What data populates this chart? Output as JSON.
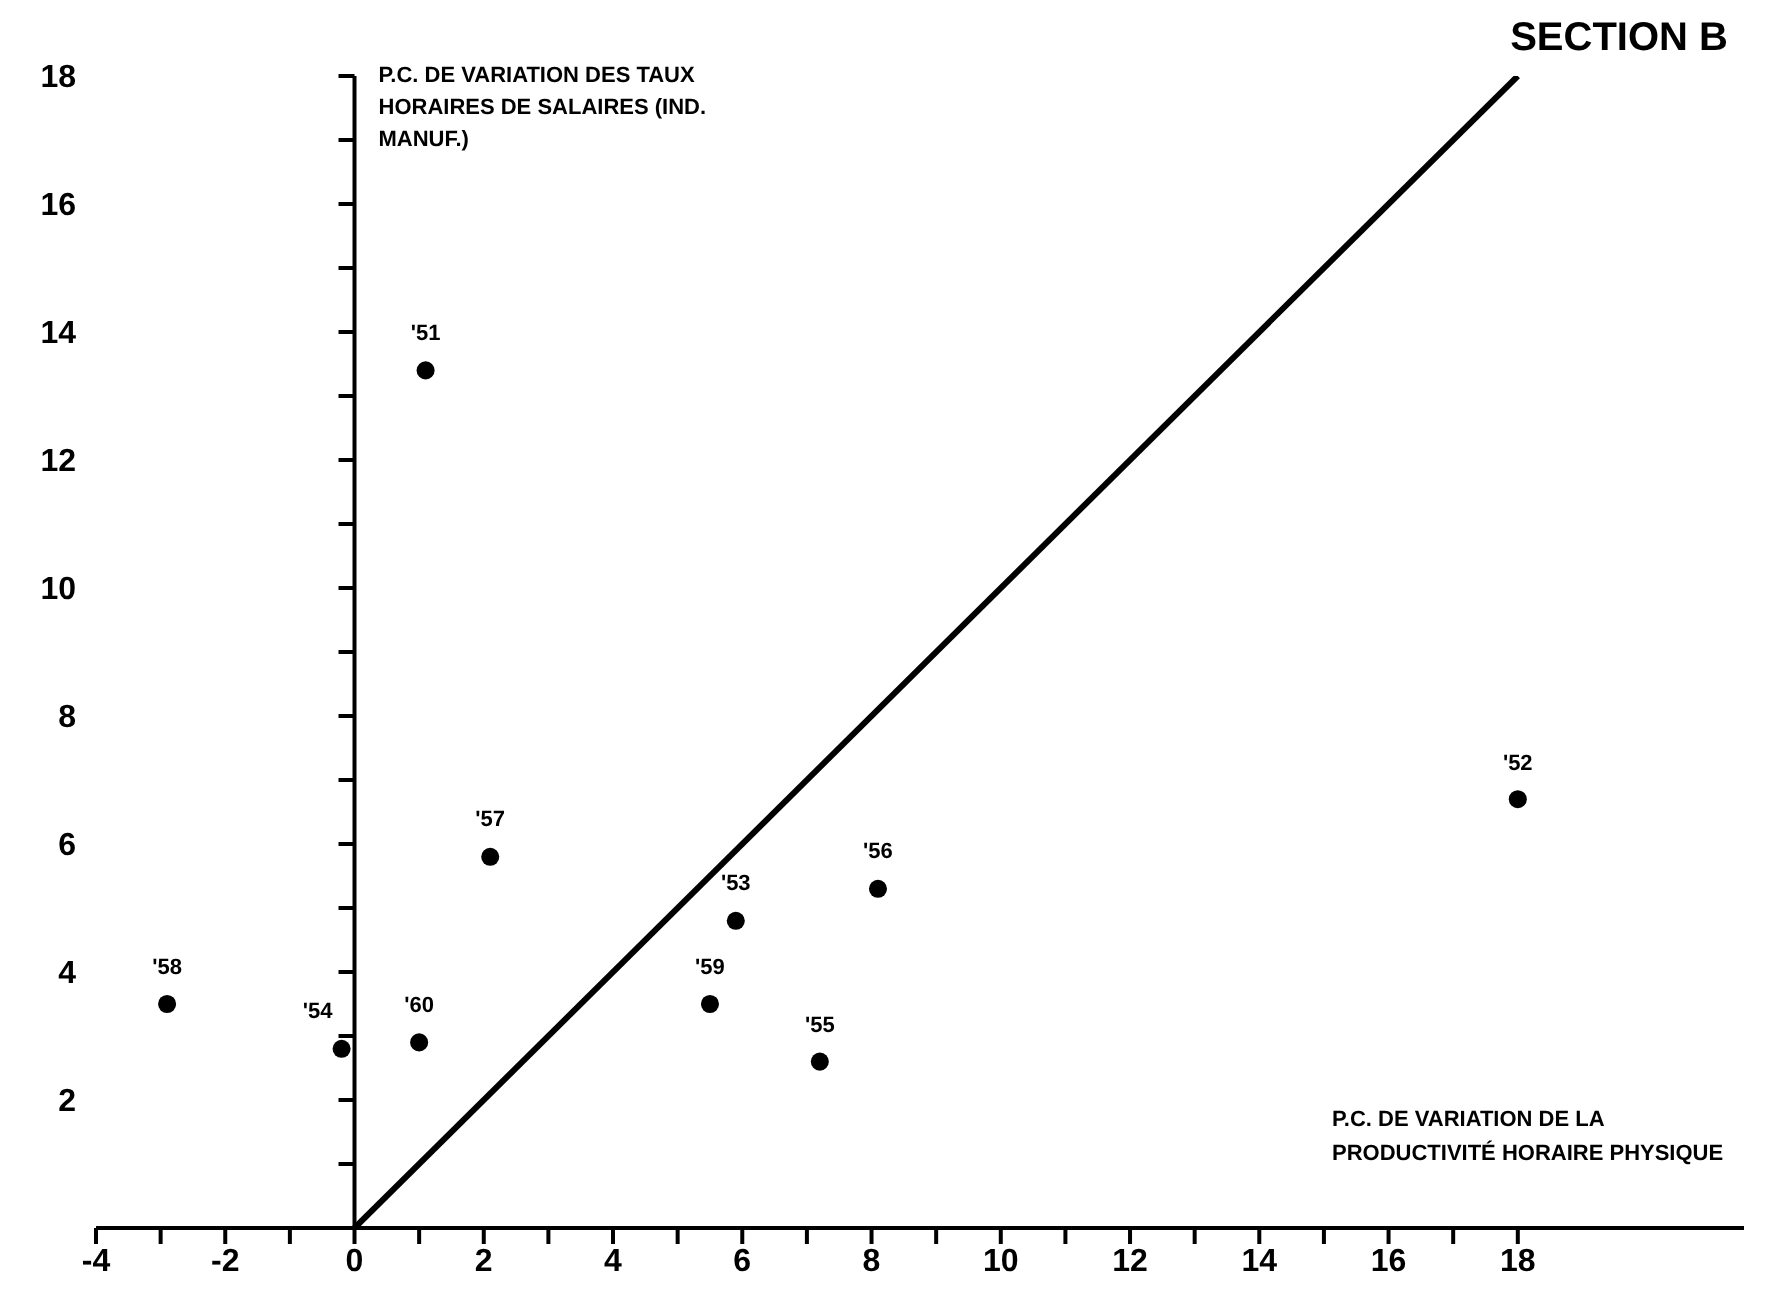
{
  "chart_data": {
    "type": "scatter",
    "title": "SECTION B",
    "xlabel": "P.C. DE VARIATION DE LA PRODUCTIVITÉ HORAIRE PHYSIQUE",
    "ylabel": "P.C. DE VARIATION DES TAUX HORAIRES DE SALAIRES (IND. MANUF.)",
    "annotations": [
      {
        "text": "'58",
        "x": -2.9,
        "y": 3.5
      },
      {
        "text": "'54",
        "x": -0.2,
        "y": 2.8
      },
      {
        "text": "'60",
        "x": 1.0,
        "y": 2.9
      },
      {
        "text": "'57",
        "x": 2.1,
        "y": 5.8
      },
      {
        "text": "'59",
        "x": 5.5,
        "y": 3.5
      },
      {
        "text": "'53",
        "x": 5.9,
        "y": 4.8
      },
      {
        "text": "'55",
        "x": 7.2,
        "y": 2.6
      },
      {
        "text": "'56",
        "x": 8.1,
        "y": 5.3
      },
      {
        "text": "'51",
        "x": 1.1,
        "y": 13.4
      },
      {
        "text": "'52",
        "x": 18.0,
        "y": 6.7
      }
    ],
    "xlim": [
      -4,
      21.5
    ],
    "ylim": [
      0,
      18
    ],
    "xticks": [
      -4,
      {
        "value": -3,
        "label": null
      },
      -2,
      {
        "value": -1,
        "label": null
      },
      0,
      {
        "value": 1,
        "label": null
      },
      2,
      {
        "value": 3,
        "label": null
      },
      4,
      {
        "value": 5,
        "label": null
      },
      6,
      {
        "value": 7,
        "label": null
      },
      8,
      {
        "value": 9,
        "label": null
      },
      10,
      {
        "value": 11,
        "label": null
      },
      12,
      {
        "value": 13,
        "label": null
      },
      14,
      {
        "value": 15,
        "label": null
      },
      16,
      {
        "value": 17,
        "label": null
      },
      18
    ],
    "yticks": [
      {
        "value": 1,
        "label": null
      },
      2,
      {
        "value": 3,
        "label": null
      },
      4,
      {
        "value": 5,
        "label": null
      },
      6,
      {
        "value": 7,
        "label": null
      },
      8,
      {
        "value": 9,
        "label": null
      },
      10,
      {
        "value": 11,
        "label": null
      },
      12,
      {
        "value": 13,
        "label": null
      },
      14,
      {
        "value": 15,
        "label": null
      },
      16,
      {
        "value": 17,
        "label": null
      },
      18
    ],
    "series": [
      {
        "color": "#000000",
        "marker": "circle",
        "x": [
          -2.9,
          -0.2,
          1.0,
          2.1,
          5.5,
          5.9,
          7.2,
          8.1,
          1.1,
          18.0
        ],
        "values": [
          3.5,
          2.8,
          2.9,
          5.8,
          3.5,
          4.8,
          2.6,
          5.3,
          13.4,
          6.7
        ]
      },
      {
        "type": "line",
        "color": "#000000",
        "x": [
          0,
          18
        ],
        "values": [
          0,
          18
        ]
      }
    ]
  }
}
